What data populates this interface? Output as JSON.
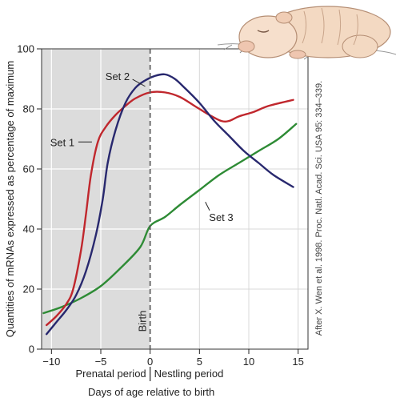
{
  "chart_data": {
    "type": "line",
    "ylabel": "Quantities of mRNAs expressed as percentage of maximum",
    "xlabel": "Days of age relative to birth",
    "xlim": [
      -11,
      16
    ],
    "ylim": [
      0,
      100
    ],
    "x_ticks": [
      -10,
      -5,
      0,
      5,
      10,
      15
    ],
    "y_ticks": [
      0,
      20,
      40,
      60,
      80,
      100
    ],
    "x_tick_labels": [
      "−10",
      "−5",
      "0",
      "5",
      "10",
      "15"
    ],
    "y_tick_labels": [
      "0",
      "20",
      "40",
      "60",
      "80",
      "100"
    ],
    "period_labels": {
      "prenatal": "Prenatal period",
      "nestling": "Nestling period"
    },
    "birth_label": "Birth",
    "birth_x": 0,
    "shaded_region": [
      -11,
      0
    ],
    "grid": true,
    "credit": "After X. Wen et al. 1998. Proc. Natl. Acad. Sci. USA 95: 334–339.",
    "series": [
      {
        "name": "Set 1",
        "color": "#c0272d",
        "x": [
          -10.5,
          -9.5,
          -8.5,
          -7.8,
          -7,
          -6.5,
          -6,
          -5.3,
          -4.5,
          -3.5,
          -2.5,
          -1.5,
          0,
          1.5,
          3,
          4.5,
          6,
          7.2,
          8,
          9,
          10.5,
          12,
          14.5
        ],
        "y": [
          8,
          11,
          15,
          20,
          33,
          45,
          58,
          69,
          74,
          78,
          81,
          83.5,
          85.5,
          85.5,
          84,
          81,
          78,
          76,
          76,
          77.5,
          79,
          81,
          83
        ]
      },
      {
        "name": "Set 2",
        "color": "#28286e",
        "x": [
          -10.5,
          -9.5,
          -8.5,
          -7.5,
          -6.5,
          -5.5,
          -4.8,
          -4.3,
          -3.5,
          -2.5,
          -1.5,
          -0.5,
          0.5,
          1.5,
          2.5,
          3.5,
          5,
          6.5,
          8,
          9.5,
          11,
          12.5,
          14.5
        ],
        "y": [
          5,
          9,
          13,
          18,
          26,
          38,
          50,
          62,
          73,
          82,
          87,
          89.5,
          91,
          91.5,
          90,
          87,
          82,
          76,
          71,
          66,
          62,
          58,
          54
        ]
      },
      {
        "name": "Set 3",
        "color": "#2e8b35",
        "x": [
          -10.8,
          -9,
          -7,
          -5,
          -3,
          -1,
          0,
          1.5,
          3,
          5,
          7,
          9,
          11,
          13,
          14.8
        ],
        "y": [
          12,
          14,
          17,
          21,
          27,
          34,
          41,
          44,
          48,
          53,
          58,
          62,
          66,
          70,
          75
        ]
      }
    ],
    "annotations": [
      {
        "text": "Set 1",
        "series": 0,
        "x": -8.9,
        "y": 69,
        "arrow_to": [
          -5.9,
          69
        ]
      },
      {
        "text": "Set 2",
        "series": 1,
        "x": -3.3,
        "y": 91,
        "arrow_to": [
          -0.5,
          87.5
        ]
      },
      {
        "text": "Set 3",
        "series": 2,
        "x": 7.2,
        "y": 44,
        "arrow_to": [
          5.6,
          49
        ]
      }
    ]
  }
}
